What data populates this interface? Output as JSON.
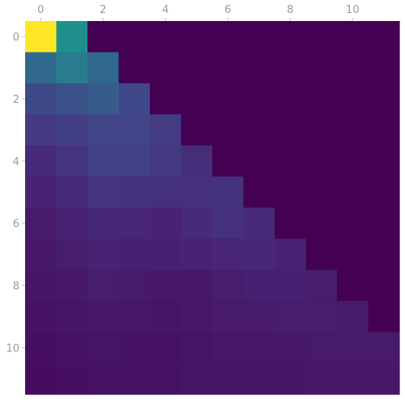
{
  "chart_data": {
    "type": "heatmap",
    "title": "",
    "xlabel": "",
    "ylabel": "",
    "x_ticks": [
      0,
      2,
      4,
      6,
      8,
      10
    ],
    "y_ticks": [
      0,
      2,
      4,
      6,
      8,
      10
    ],
    "x_tick_labels": [
      "0",
      "2",
      "4",
      "6",
      "8",
      "10"
    ],
    "y_tick_labels": [
      "0",
      "2",
      "4",
      "6",
      "8",
      "10"
    ],
    "xlim": [
      -0.5,
      11.5
    ],
    "ylim": [
      11.5,
      -0.5
    ],
    "x_ticks_position": "top",
    "grid": false,
    "legend": "none",
    "colormap": "viridis",
    "vmin": 0,
    "vmax": 1,
    "rows": 12,
    "cols": 12,
    "values": [
      [
        1.0,
        0.62,
        0,
        0,
        0,
        0,
        0,
        0,
        0,
        0,
        0,
        0
      ],
      [
        0.42,
        0.52,
        0.42,
        0,
        0,
        0,
        0,
        0,
        0,
        0,
        0,
        0
      ],
      [
        0.28,
        0.31,
        0.36,
        0.27,
        0,
        0,
        0,
        0,
        0,
        0,
        0,
        0
      ],
      [
        0.21,
        0.23,
        0.25,
        0.25,
        0.22,
        0,
        0,
        0,
        0,
        0,
        0,
        0
      ],
      [
        0.15,
        0.19,
        0.24,
        0.24,
        0.21,
        0.16,
        0,
        0,
        0,
        0,
        0,
        0
      ],
      [
        0.12,
        0.15,
        0.19,
        0.18,
        0.17,
        0.17,
        0.18,
        0,
        0,
        0,
        0,
        0
      ],
      [
        0.09,
        0.12,
        0.14,
        0.13,
        0.12,
        0.15,
        0.17,
        0.15,
        0,
        0,
        0,
        0
      ],
      [
        0.08,
        0.1,
        0.12,
        0.11,
        0.11,
        0.12,
        0.13,
        0.14,
        0.12,
        0,
        0,
        0
      ],
      [
        0.07,
        0.08,
        0.1,
        0.09,
        0.08,
        0.08,
        0.1,
        0.11,
        0.11,
        0.1,
        0,
        0
      ],
      [
        0.06,
        0.07,
        0.08,
        0.08,
        0.07,
        0.08,
        0.09,
        0.09,
        0.1,
        0.1,
        0.09,
        0
      ],
      [
        0.05,
        0.06,
        0.07,
        0.06,
        0.06,
        0.07,
        0.08,
        0.08,
        0.08,
        0.09,
        0.09,
        0.09
      ],
      [
        0.04,
        0.05,
        0.06,
        0.06,
        0.06,
        0.07,
        0.07,
        0.07,
        0.07,
        0.08,
        0.08,
        0.08
      ]
    ]
  }
}
